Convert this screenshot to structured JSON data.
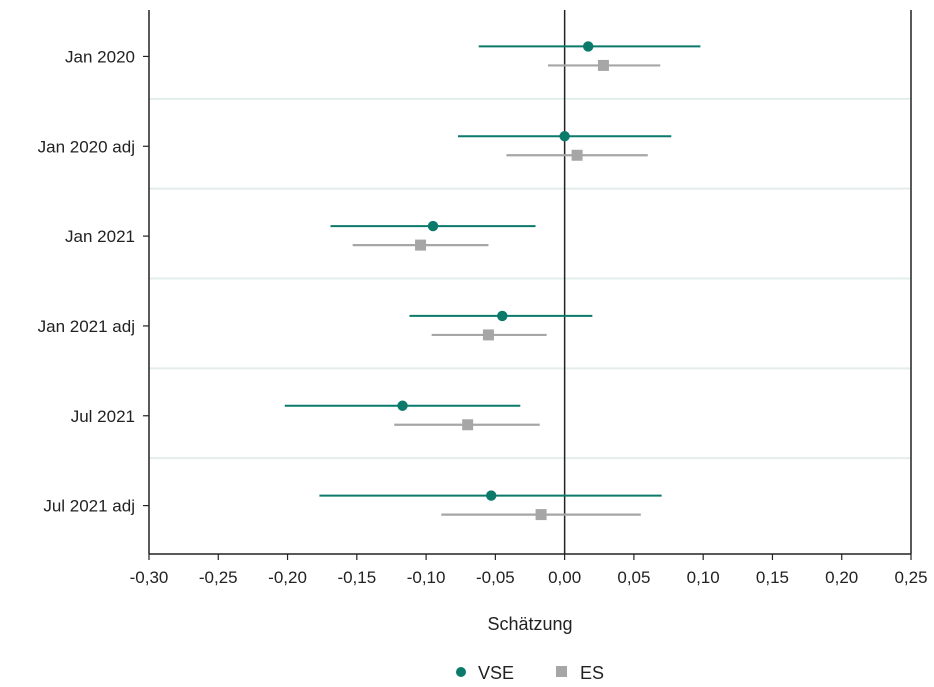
{
  "chart_data": {
    "type": "scatter",
    "subtype": "forest-plot",
    "title": "",
    "xlabel": "Schätzung",
    "ylabel": "",
    "xlim": [
      -0.3,
      0.25
    ],
    "x_ticks": [
      -0.3,
      -0.25,
      -0.2,
      -0.15,
      -0.1,
      -0.05,
      0.0,
      0.05,
      0.1,
      0.15,
      0.2,
      0.25
    ],
    "x_tick_labels": [
      "-0,30",
      "-0,25",
      "-0,20",
      "-0,15",
      "-0,10",
      "-0,05",
      "0,00",
      "0,05",
      "0,10",
      "0,15",
      "0,20",
      "0,25"
    ],
    "categories": [
      "Jan 2020",
      "Jan 2020 adj",
      "Jan 2021",
      "Jan 2021 adj",
      "Jul 2021",
      "Jul 2021 adj"
    ],
    "reference_line": 0,
    "legend_position": "bottom-center",
    "series": [
      {
        "name": "VSE",
        "marker": "circle",
        "color": "#0b7a6b",
        "estimates": [
          0.017,
          0.0,
          -0.095,
          -0.045,
          -0.117,
          -0.053
        ],
        "ci_low": [
          -0.062,
          -0.077,
          -0.169,
          -0.112,
          -0.202,
          -0.177
        ],
        "ci_high": [
          0.098,
          0.077,
          -0.021,
          0.02,
          -0.032,
          0.07
        ]
      },
      {
        "name": "ES",
        "marker": "square",
        "color": "#a6a6a6",
        "estimates": [
          0.028,
          0.009,
          -0.104,
          -0.055,
          -0.07,
          -0.017
        ],
        "ci_low": [
          -0.012,
          -0.042,
          -0.153,
          -0.096,
          -0.123,
          -0.089
        ],
        "ci_high": [
          0.069,
          0.06,
          -0.055,
          -0.013,
          -0.018,
          0.055
        ]
      }
    ]
  }
}
